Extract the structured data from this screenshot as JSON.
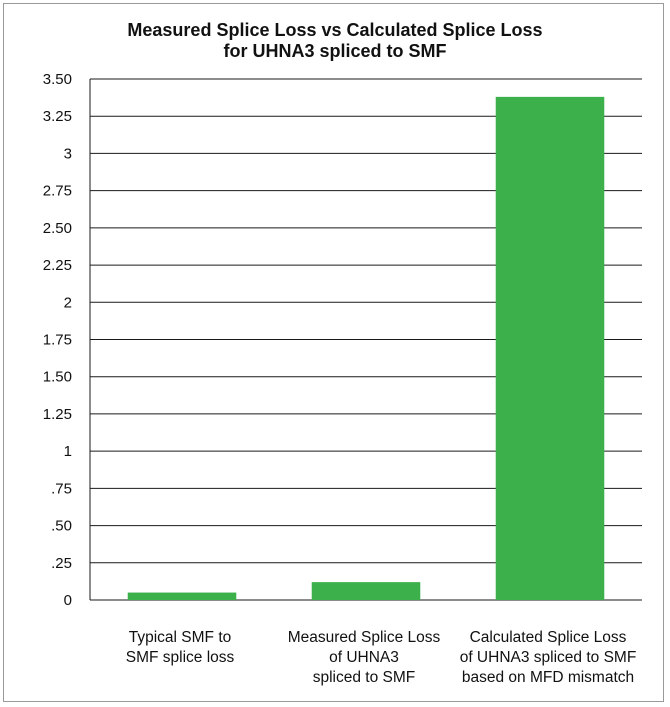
{
  "chart_data": {
    "type": "bar",
    "title_lines": [
      "Measured Splice Loss vs Calculated Splice Loss",
      "for UHNA3 spliced to SMF"
    ],
    "categories": [
      [
        "Typical SMF to",
        "SMF splice loss"
      ],
      [
        "Measured Splice Loss",
        "of UHNA3",
        "spliced to SMF"
      ],
      [
        "Calculated Splice Loss",
        "of UHNA3 spliced to SMF",
        "based on MFD mismatch"
      ]
    ],
    "values": [
      0.05,
      0.12,
      3.38
    ],
    "ylim": [
      0,
      3.5
    ],
    "ytick_values": [
      0,
      0.25,
      0.5,
      0.75,
      1,
      1.25,
      1.5,
      1.75,
      2,
      2.25,
      2.5,
      2.75,
      3,
      3.25,
      3.5
    ],
    "ytick_labels": [
      "0",
      ".25",
      ".50",
      ".75",
      "1",
      "1.25",
      "1.50",
      "1.75",
      "2",
      "2.25",
      "2.50",
      "2.75",
      "3",
      "3.25",
      "3.50"
    ],
    "grid": true,
    "legend": "none",
    "bar_color": "#3cb04a"
  }
}
